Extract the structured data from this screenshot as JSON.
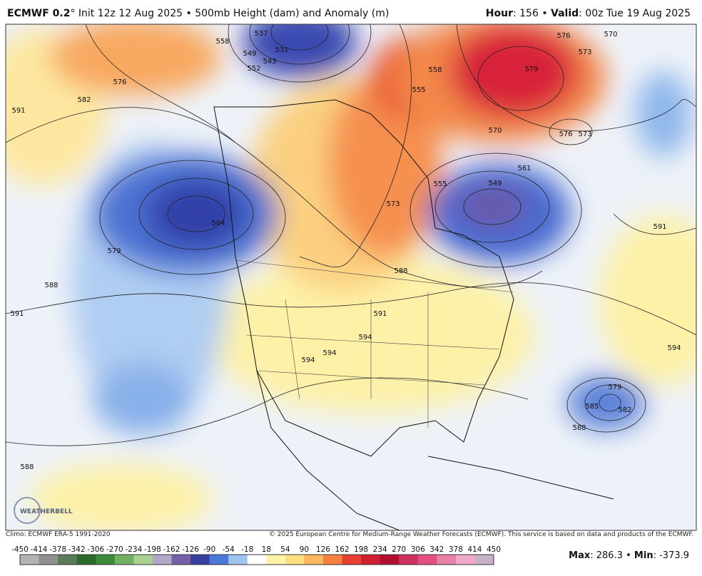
{
  "header": {
    "model": "ECMWF 0.2",
    "degree": "°",
    "init": "Init 12z 12 Aug 2025 • 500mb Height (dam) and Anomaly (m)",
    "hour_label": "Hour",
    "hour_text": ": 156 • ",
    "valid_label": "Valid",
    "valid_text": ": 00z Tue 19 Aug 2025"
  },
  "footer": {
    "climo": "Climo: ECMWF ERA-5 1991-2020",
    "copyright": "© 2025 European Centre for Medium-Range Weather Forecasts (ECMWF). This service is based on data and products of the ECMWF."
  },
  "logo": "WEATHERBELL",
  "contour_labels": [
    594,
    591,
    594,
    594,
    594,
    591,
    588,
    579,
    591,
    582,
    576,
    573,
    588,
    555,
    549,
    561,
    570,
    579,
    576,
    573,
    570,
    576,
    573,
    558,
    555,
    591,
    579,
    585,
    582,
    588,
    588,
    558,
    552,
    549,
    543,
    537,
    531,
    564
  ],
  "colorbar": {
    "ticks": [
      -450,
      -414,
      -378,
      -342,
      -306,
      -270,
      -234,
      -198,
      -162,
      -126,
      -90,
      -54,
      -18,
      18,
      54,
      90,
      126,
      162,
      198,
      234,
      270,
      306,
      342,
      378,
      414,
      450
    ]
  },
  "stats": {
    "max_label": "Max",
    "max_text": ": 286.3 • ",
    "min_label": "Min",
    "min_text": ": -373.9"
  }
}
